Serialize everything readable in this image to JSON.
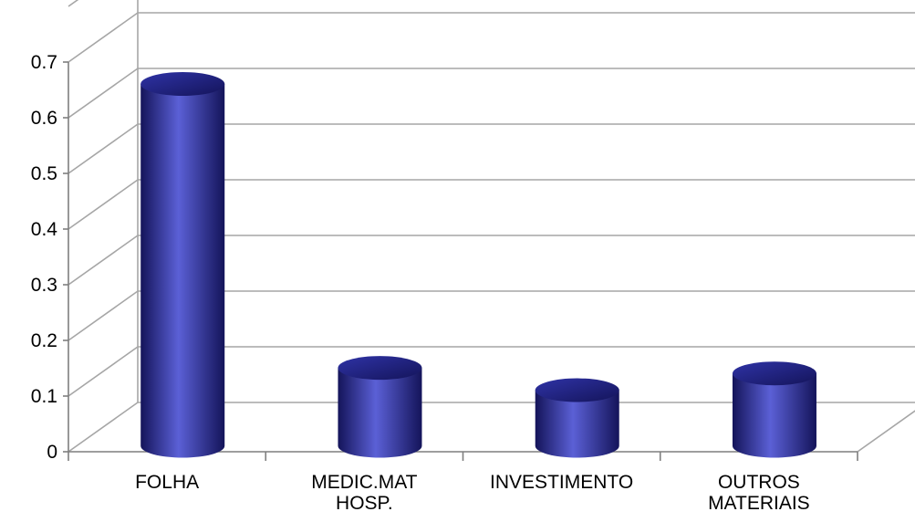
{
  "chart_data": {
    "type": "bar",
    "style": "3d-cylinder",
    "categories": [
      [
        "FOLHA"
      ],
      [
        "MEDIC.MAT",
        "HOSP."
      ],
      [
        "INVESTIMENTO"
      ],
      [
        "OUTROS",
        "MATERIAIS"
      ]
    ],
    "values": [
      0.65,
      0.14,
      0.1,
      0.13
    ],
    "ylim": [
      0,
      0.7
    ],
    "yticks": [
      "0",
      "0.1",
      "0.2",
      "0.3",
      "0.4",
      "0.5",
      "0.6",
      "0.7"
    ],
    "grid": true,
    "legend": "none",
    "colors": {
      "bar_dark": "#14145a",
      "bar_mid": "#2f33a6",
      "bar_light": "#5b60d6",
      "grid": "#a6a6a6",
      "axis": "#7f7f7f"
    }
  }
}
